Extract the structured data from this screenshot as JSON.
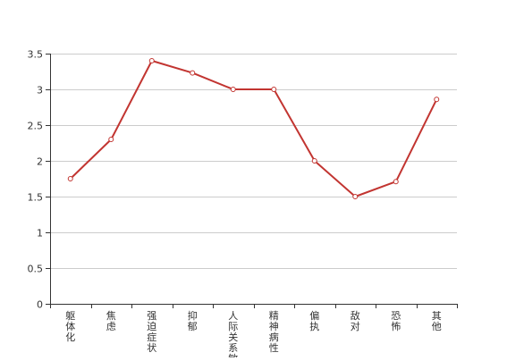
{
  "chart_data": {
    "type": "line",
    "title": "",
    "xlabel": "",
    "ylabel": "",
    "categories": [
      "躯体化",
      "焦虑",
      "强迫症状",
      "抑郁",
      "人际关系敏感",
      "精神病性",
      "偏执",
      "敌对",
      "恐怖",
      "其他"
    ],
    "series": [
      {
        "values": [
          1.75,
          2.3,
          3.4,
          3.23,
          3.0,
          3.0,
          2.0,
          1.5,
          1.71,
          2.86
        ]
      }
    ],
    "ylim": [
      0,
      3.5
    ],
    "yticks": [
      0,
      0.5,
      1,
      1.5,
      2,
      2.5,
      3,
      3.5
    ],
    "ytick_labels": [
      "0",
      "0.5",
      "1",
      "1.5",
      "2",
      "2.5",
      "3",
      "3.5"
    ],
    "grid": true,
    "legend": "none",
    "colors": {
      "line": "#c23531",
      "grid": "#cccccc",
      "axis": "#333333",
      "marker_fill": "#ffffff"
    }
  }
}
